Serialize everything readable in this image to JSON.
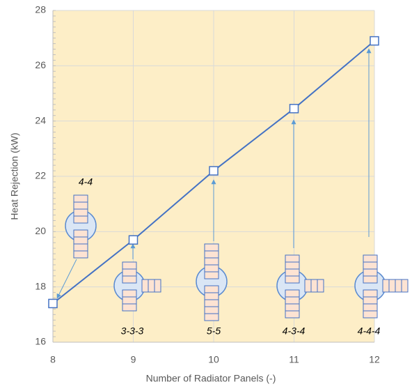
{
  "chart_data": {
    "type": "line",
    "xlabel": "Number of Radiator Panels (-)",
    "ylabel": "Heat Rejection (kW)",
    "x": [
      8,
      9,
      10,
      11,
      12
    ],
    "series": [
      {
        "color": "#4472c4",
        "values": [
          17.4,
          19.7,
          22.2,
          24.45,
          26.9
        ]
      }
    ],
    "xlim": [
      8,
      12
    ],
    "xticks": [
      8,
      9,
      10,
      11,
      12
    ],
    "ylim": [
      16,
      28
    ],
    "yticks": [
      16,
      18,
      20,
      22,
      24,
      26,
      28
    ],
    "grid": true,
    "background": "#fdeec7",
    "annotations": [
      "4-4",
      "3-3-3",
      "5-5",
      "4-3-4",
      "4-4-4"
    ]
  }
}
